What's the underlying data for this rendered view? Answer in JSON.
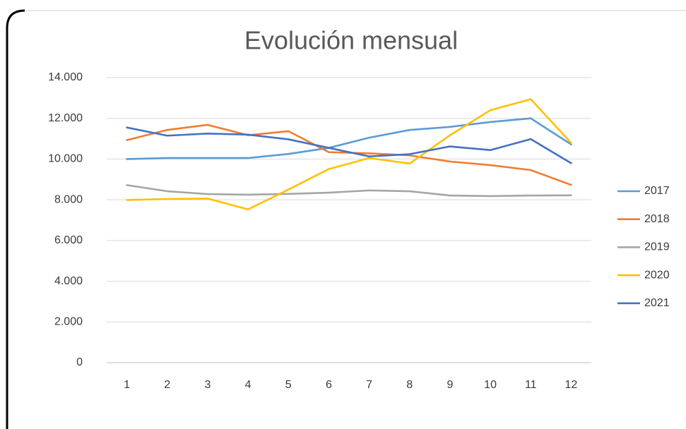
{
  "chart_data": {
    "type": "line",
    "title": "Evolución mensual",
    "categories": [
      "1",
      "2",
      "3",
      "4",
      "5",
      "6",
      "7",
      "8",
      "9",
      "10",
      "11",
      "12"
    ],
    "series": [
      {
        "name": "2017",
        "color": "#5b9bd5",
        "values": [
          10000,
          10050,
          10050,
          10050,
          10250,
          10550,
          11050,
          11430,
          11580,
          11820,
          12000,
          10720
        ]
      },
      {
        "name": "2018",
        "color": "#ed7d31",
        "values": [
          10930,
          11430,
          11680,
          11170,
          11370,
          10340,
          10280,
          10180,
          9880,
          9700,
          9460,
          8730
        ]
      },
      {
        "name": "2019",
        "color": "#a5a5a5",
        "values": [
          8720,
          8420,
          8280,
          8250,
          8290,
          8350,
          8460,
          8420,
          8210,
          8180,
          8210,
          8220
        ]
      },
      {
        "name": "2020",
        "color": "#ffc000",
        "values": [
          7990,
          8040,
          8060,
          7530,
          8500,
          9510,
          10050,
          9780,
          11170,
          12400,
          12940,
          10790
        ]
      },
      {
        "name": "2021",
        "color": "#4472c4",
        "values": [
          11550,
          11150,
          11250,
          11200,
          10970,
          10550,
          10130,
          10240,
          10620,
          10440,
          10980,
          9800
        ]
      }
    ],
    "ylim": [
      0,
      14000
    ],
    "yticks": [
      0,
      {
        "value": 2000,
        "label": "2.000"
      },
      {
        "value": 4000,
        "label": "4.000"
      },
      {
        "value": 6000,
        "label": "6.000"
      },
      {
        "value": 8000,
        "label": "8.000"
      },
      {
        "value": 10000,
        "label": "10.000"
      },
      {
        "value": 12000,
        "label": "12.000"
      },
      {
        "value": 14000,
        "label": "14.000"
      }
    ],
    "grid": true,
    "legend": "right"
  }
}
